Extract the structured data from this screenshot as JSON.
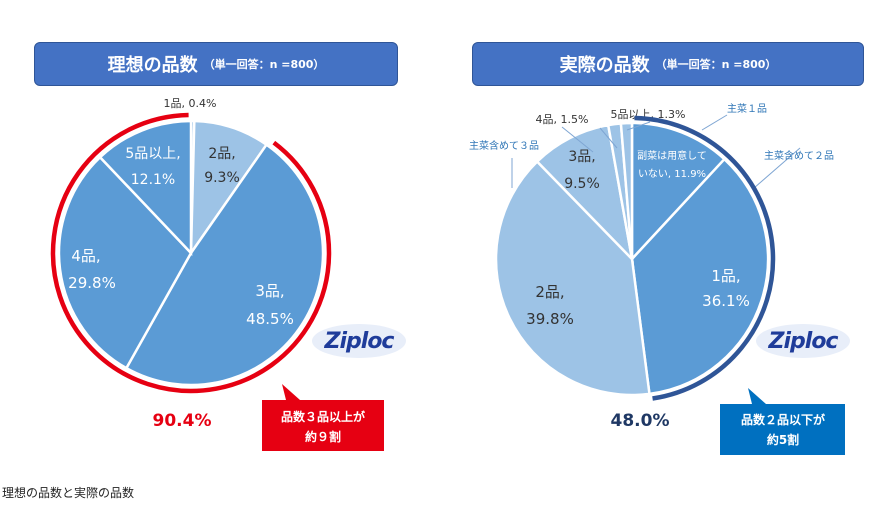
{
  "caption": "理想の品数と実際の品数",
  "colors": {
    "header": "#4472c4",
    "red": "#e60012",
    "navy": "#2f5597",
    "ziploc": "#1f3c9a"
  },
  "brand": "Ziploc",
  "chart_data": [
    {
      "type": "pie",
      "title": "理想の品数",
      "subtitle": "（単一回答：n =800）",
      "slices": [
        {
          "label": "1品, 0.4%",
          "value": 0.4,
          "color": "#9dc3e6"
        },
        {
          "label": "2品, 9.3%",
          "value": 9.3,
          "color": "#9dc3e6"
        },
        {
          "label": "3品, 48.5%",
          "value": 48.5,
          "color": "#5b9bd5"
        },
        {
          "label": "4品, 29.8%",
          "value": 29.8,
          "color": "#5b9bd5"
        },
        {
          "label": "5品以上, 12.1%",
          "value": 12.1,
          "color": "#5b9bd5"
        }
      ],
      "total": "90.4%",
      "callout": [
        "品数３品以上が",
        "約９割"
      ]
    },
    {
      "type": "pie",
      "title": "実際の品数",
      "subtitle": "（単一回答：n =800）",
      "slices": [
        {
          "label": "副菜は用意していない, 11.9%",
          "value": 11.9,
          "color": "#5b9bd5"
        },
        {
          "label": "1品, 36.1%",
          "value": 36.1,
          "color": "#5b9bd5"
        },
        {
          "label": "2品, 39.8%",
          "value": 39.8,
          "color": "#9dc3e6"
        },
        {
          "label": "3品, 9.5%",
          "value": 9.5,
          "color": "#9dc3e6"
        },
        {
          "label": "4品, 1.5%",
          "value": 1.5,
          "color": "#9dc3e6"
        },
        {
          "label": "5品以上, 1.3%",
          "value": 1.3,
          "color": "#9dc3e6"
        }
      ],
      "group_labels": [
        "主菜１品",
        "主菜含めて２品",
        "主菜含めて３品"
      ],
      "total": "48.0%",
      "callout": [
        "品数２品以下が",
        "約5割"
      ]
    }
  ]
}
